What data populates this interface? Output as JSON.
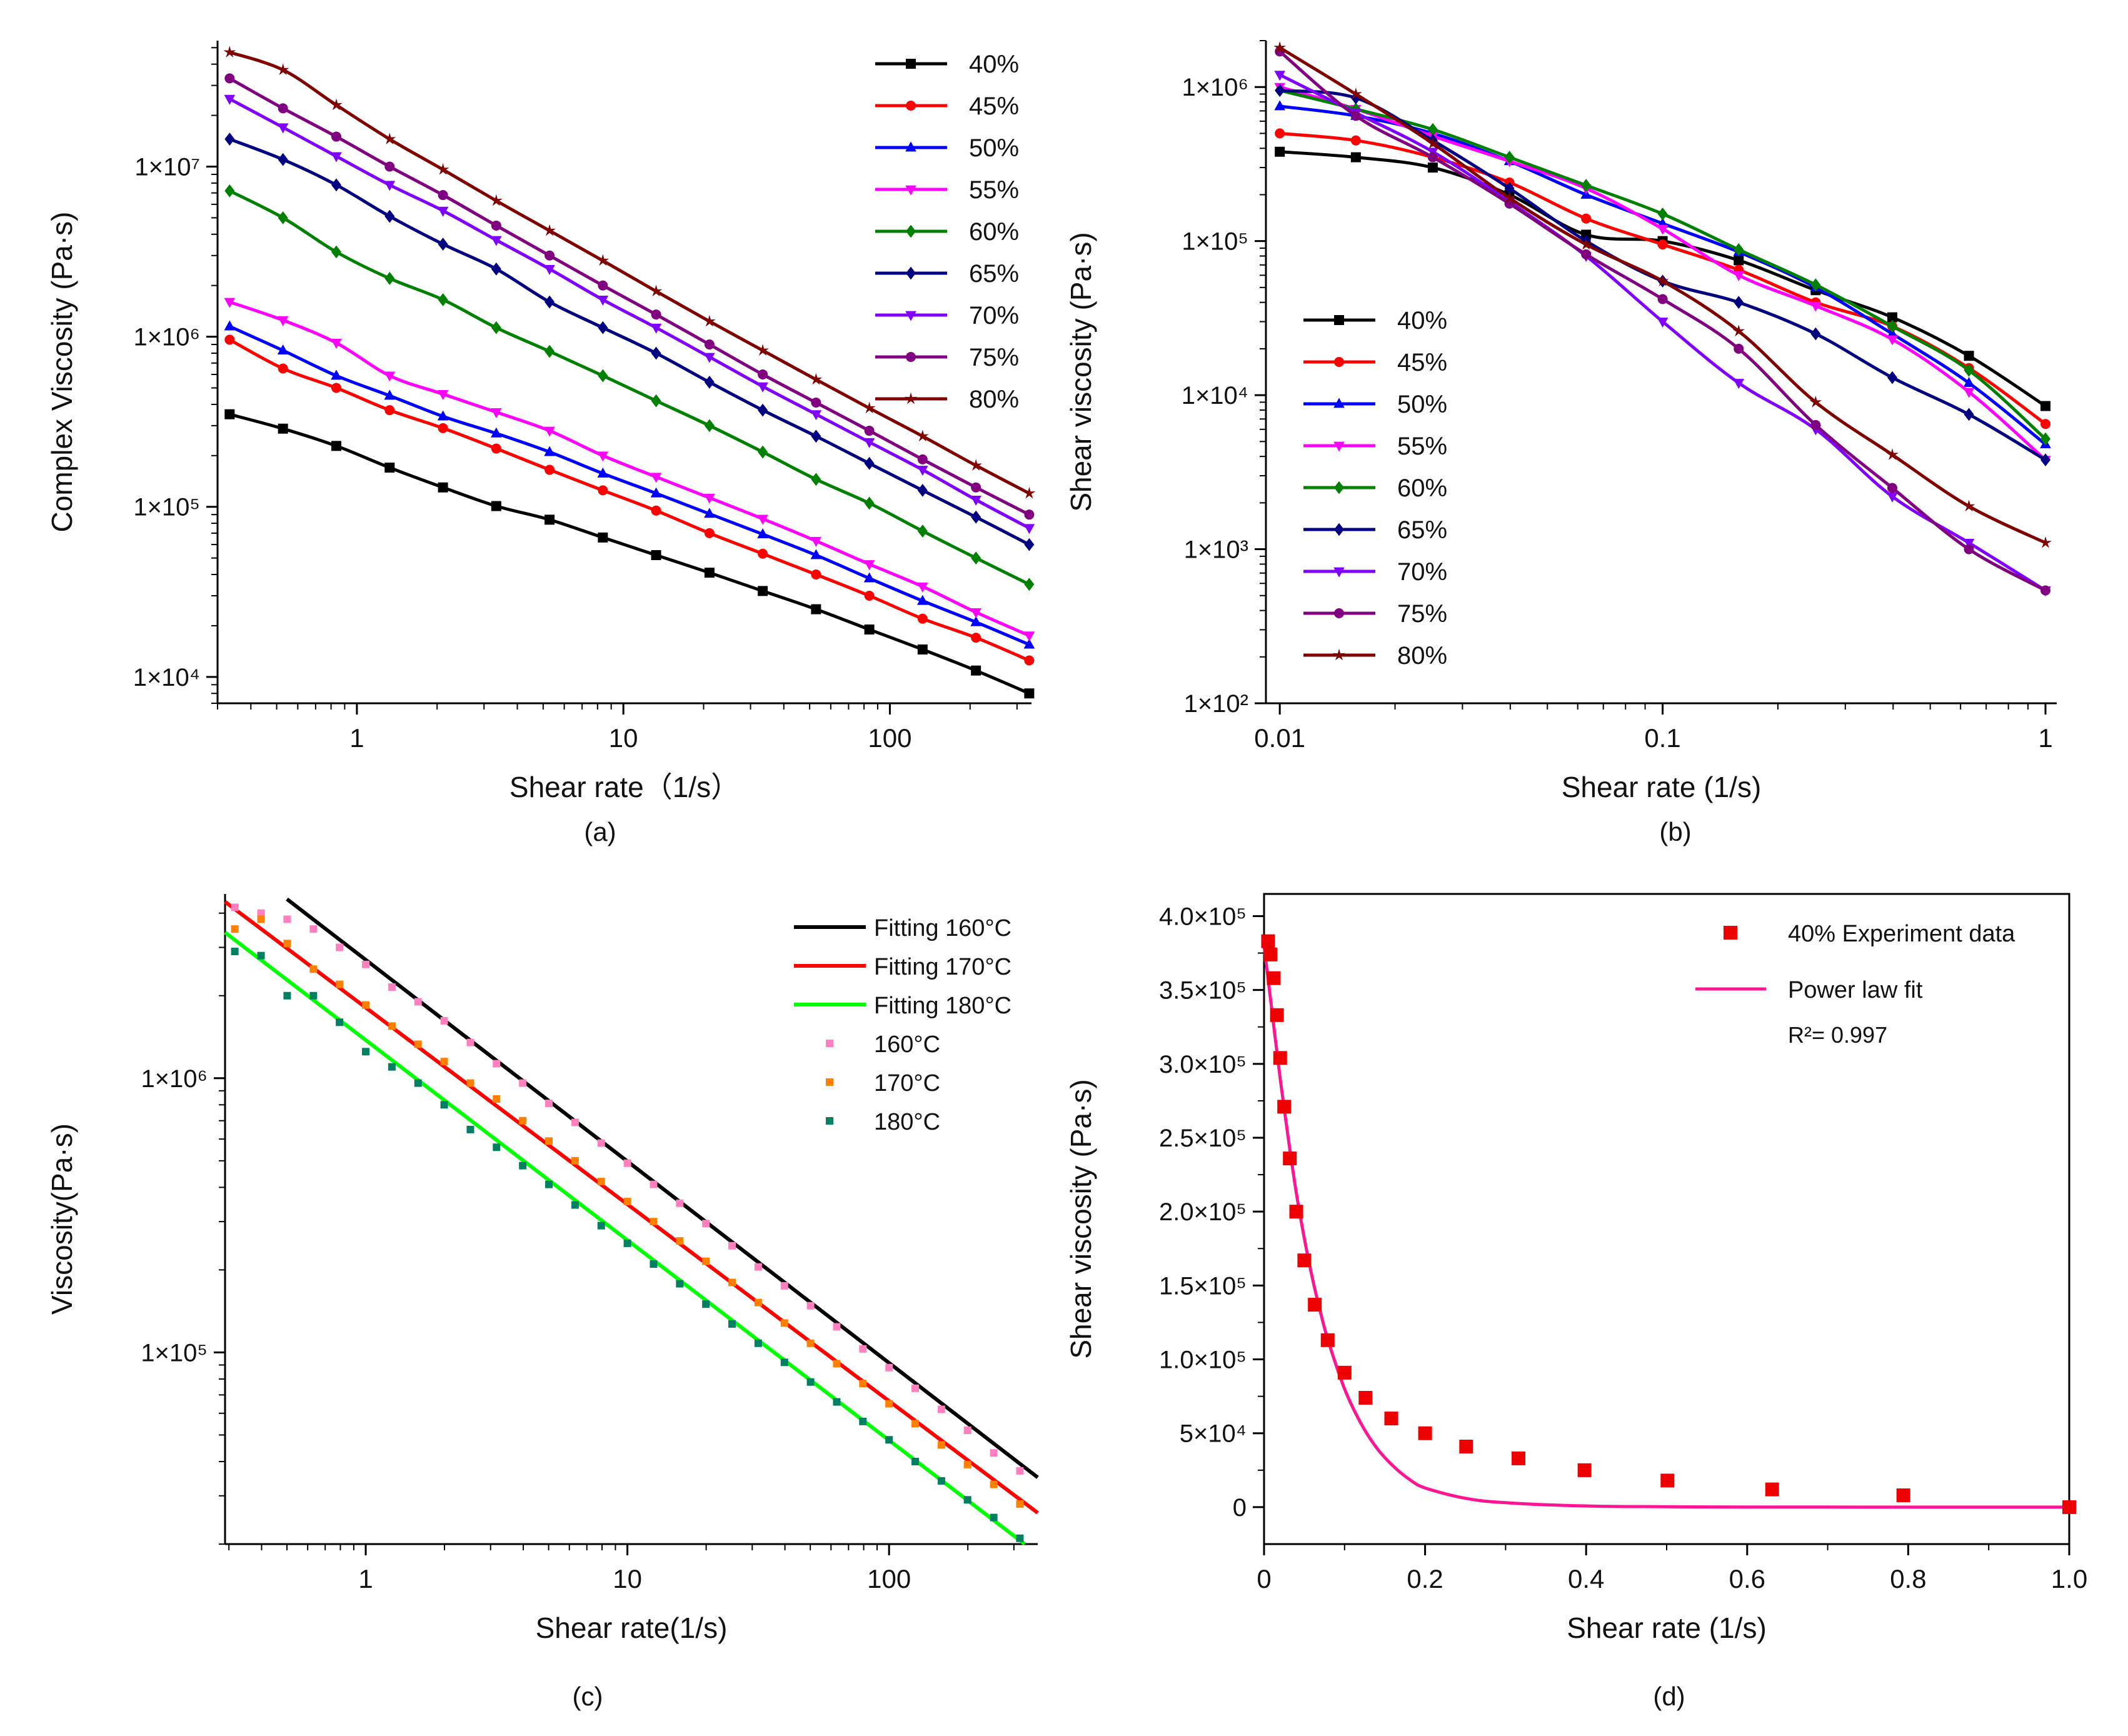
{
  "panels": [
    {
      "label": "(a)"
    },
    {
      "label": "(b)"
    },
    {
      "label": "(c)"
    },
    {
      "label": "(d)"
    }
  ],
  "chart_data": [
    {
      "type": "line",
      "scale": "log-log",
      "xlabel": "Shear rate（1/s）",
      "ylabel": "Complex Viscosity (Pa·s)",
      "xlim": [
        0.3,
        340
      ],
      "ylim": [
        7000,
        55000000
      ],
      "xticks": [
        1,
        10,
        100
      ],
      "xtick_labels": [
        "1",
        "10",
        "100"
      ],
      "yticks": [
        10000,
        100000,
        1000000,
        10000000
      ],
      "ytick_labels": [
        "1×10⁴",
        "1×10⁵",
        "1×10⁶",
        "1×10⁷"
      ],
      "legend_position": "top-right",
      "x": [
        0.333,
        0.528,
        0.837,
        1.327,
        2.104,
        3.334,
        5.284,
        8.375,
        13.27,
        21.04,
        33.34,
        52.84,
        83.75,
        132.7,
        210.4,
        333.4
      ],
      "series": [
        {
          "name": "40%",
          "color": "#000000",
          "marker": "square",
          "values": [
            350000,
            288000,
            228000,
            170000,
            130000,
            101000,
            84000,
            66000,
            52000,
            41000,
            32000,
            25000,
            19000,
            14500,
            10900,
            8000
          ]
        },
        {
          "name": "45%",
          "color": "#ff0000",
          "marker": "circle",
          "values": [
            960000,
            650000,
            500000,
            370000,
            290000,
            220000,
            165000,
            125000,
            95000,
            70000,
            53000,
            40000,
            30000,
            22000,
            17000,
            12500
          ]
        },
        {
          "name": "50%",
          "color": "#0000ff",
          "marker": "triangle-up",
          "values": [
            1150000,
            830000,
            590000,
            450000,
            340000,
            270000,
            210000,
            157000,
            120000,
            91000,
            69000,
            52000,
            38000,
            28000,
            21000,
            15500
          ]
        },
        {
          "name": "55%",
          "color": "#ff00ff",
          "marker": "triangle-down",
          "values": [
            1600000,
            1250000,
            920000,
            590000,
            460000,
            360000,
            280000,
            200000,
            150000,
            113000,
            85000,
            63000,
            46000,
            34000,
            24000,
            17500
          ]
        },
        {
          "name": "60%",
          "color": "#008000",
          "marker": "diamond",
          "values": [
            7200000,
            5000000,
            3150000,
            2200000,
            1650000,
            1130000,
            820000,
            590000,
            420000,
            300000,
            210000,
            145000,
            105000,
            72000,
            50000,
            35000
          ]
        },
        {
          "name": "65%",
          "color": "#000080",
          "marker": "diamond",
          "values": [
            14500000,
            11000000,
            7800000,
            5100000,
            3500000,
            2500000,
            1600000,
            1130000,
            800000,
            540000,
            370000,
            260000,
            180000,
            125000,
            87000,
            60000
          ]
        },
        {
          "name": "70%",
          "color": "#8000ff",
          "marker": "triangle-down",
          "values": [
            25000000,
            17000000,
            11500000,
            7800000,
            5500000,
            3700000,
            2500000,
            1650000,
            1130000,
            760000,
            510000,
            350000,
            240000,
            165000,
            110000,
            75000
          ]
        },
        {
          "name": "75%",
          "color": "#800080",
          "marker": "circle",
          "values": [
            33000000,
            22000000,
            15000000,
            10000000,
            6800000,
            4500000,
            3000000,
            2000000,
            1350000,
            900000,
            600000,
            410000,
            280000,
            190000,
            130000,
            90000
          ]
        },
        {
          "name": "80%",
          "color": "#800000",
          "marker": "star",
          "values": [
            47000000,
            37000000,
            23000000,
            14500000,
            9600000,
            6300000,
            4200000,
            2800000,
            1850000,
            1230000,
            830000,
            560000,
            380000,
            260000,
            175000,
            120000
          ]
        }
      ]
    },
    {
      "type": "line",
      "scale": "log-log",
      "xlabel": "Shear rate (1/s)",
      "ylabel": "Shear viscosity (Pa·s)",
      "xlim": [
        0.0092,
        1.07
      ],
      "ylim": [
        100,
        2000000
      ],
      "xticks": [
        0.01,
        0.1,
        1
      ],
      "xtick_labels": [
        "0.01",
        "0.1",
        "1"
      ],
      "yticks": [
        100,
        1000,
        10000,
        100000,
        1000000
      ],
      "ytick_labels": [
        "1×10²",
        "1×10³",
        "1×10⁴",
        "1×10⁵",
        "1×10⁶"
      ],
      "legend_position": "bottom-left",
      "x": [
        0.01,
        0.0158,
        0.0251,
        0.0398,
        0.0631,
        0.1,
        0.158,
        0.251,
        0.398,
        0.631,
        1.0
      ],
      "series": [
        {
          "name": "40%",
          "color": "#000000",
          "marker": "square",
          "values": [
            380000,
            350000,
            300000,
            200000,
            110000,
            100000,
            75000,
            48000,
            32000,
            18000,
            8500
          ]
        },
        {
          "name": "45%",
          "color": "#ff0000",
          "marker": "circle",
          "values": [
            500000,
            450000,
            350000,
            240000,
            140000,
            95000,
            65000,
            40000,
            28000,
            15000,
            6500
          ]
        },
        {
          "name": "50%",
          "color": "#0000ff",
          "marker": "triangle-up",
          "values": [
            750000,
            650000,
            500000,
            330000,
            200000,
            130000,
            85000,
            50000,
            25000,
            12000,
            4800
          ]
        },
        {
          "name": "55%",
          "color": "#ff00ff",
          "marker": "triangle-down",
          "values": [
            1000000,
            720000,
            480000,
            330000,
            220000,
            120000,
            60000,
            38000,
            23000,
            10500,
            3800
          ]
        },
        {
          "name": "60%",
          "color": "#008000",
          "marker": "diamond",
          "values": [
            950000,
            720000,
            530000,
            350000,
            230000,
            150000,
            88000,
            52000,
            28000,
            14500,
            5200
          ]
        },
        {
          "name": "65%",
          "color": "#000080",
          "marker": "diamond",
          "values": [
            950000,
            850000,
            450000,
            220000,
            100000,
            55000,
            40000,
            25000,
            13000,
            7500,
            3800
          ]
        },
        {
          "name": "70%",
          "color": "#8000ff",
          "marker": "triangle-down",
          "values": [
            1200000,
            680000,
            380000,
            180000,
            80000,
            30000,
            12000,
            6000,
            2200,
            1100,
            540
          ]
        },
        {
          "name": "75%",
          "color": "#800080",
          "marker": "circle",
          "values": [
            1700000,
            650000,
            350000,
            175000,
            82000,
            42000,
            20000,
            6400,
            2500,
            1000,
            540
          ]
        },
        {
          "name": "80%",
          "color": "#800000",
          "marker": "star",
          "values": [
            1800000,
            900000,
            430000,
            190000,
            95000,
            55000,
            26000,
            9000,
            4100,
            1900,
            1100
          ]
        }
      ]
    },
    {
      "type": "scatter",
      "scale": "log-log",
      "xlabel": "Shear rate(1/s)",
      "ylabel": "Viscosity(Pa·s)",
      "xlim": [
        0.29,
        370
      ],
      "ylim": [
        20000,
        4700000
      ],
      "xticks": [
        1,
        10,
        100
      ],
      "xtick_labels": [
        "1",
        "10",
        "100"
      ],
      "yticks": [
        100000,
        1000000
      ],
      "ytick_labels": [
        "1×10⁵",
        "1×10⁶"
      ],
      "legend_position": "top-right",
      "fit_lines": [
        {
          "name": "Fitting 160°C",
          "color": "#000000",
          "x": [
            0.5,
            370
          ],
          "y": [
            4500000,
            35000
          ]
        },
        {
          "name": "Fitting 170°C",
          "color": "#ff0000",
          "x": [
            0.29,
            370
          ],
          "y": [
            4400000,
            26000
          ]
        },
        {
          "name": "Fitting 180°C",
          "color": "#00ff00",
          "x": [
            0.29,
            330
          ],
          "y": [
            3400000,
            20000
          ]
        }
      ],
      "x": [
        0.316,
        0.398,
        0.501,
        0.631,
        0.794,
        1.0,
        1.259,
        1.585,
        1.995,
        2.512,
        3.162,
        3.981,
        5.012,
        6.31,
        7.943,
        10.0,
        12.59,
        15.85,
        19.95,
        25.12,
        31.62,
        39.81,
        50.12,
        63.1,
        79.43,
        100.0,
        125.9,
        158.5,
        199.5,
        251.2,
        316.2
      ],
      "series": [
        {
          "name": "160°C",
          "color": "#ff7fbf",
          "marker": "square",
          "values": [
            4200000,
            4000000,
            3800000,
            3500000,
            3000000,
            2600000,
            2150000,
            1900000,
            1620000,
            1350000,
            1130000,
            960000,
            810000,
            690000,
            580000,
            490000,
            410000,
            350000,
            295000,
            245000,
            205000,
            175000,
            148000,
            124000,
            103000,
            88000,
            74000,
            62000,
            52000,
            43000,
            37000
          ]
        },
        {
          "name": "170°C",
          "color": "#ff8000",
          "marker": "square",
          "values": [
            3500000,
            3800000,
            3100000,
            2500000,
            2200000,
            1850000,
            1550000,
            1330000,
            1150000,
            960000,
            840000,
            700000,
            590000,
            500000,
            420000,
            355000,
            300000,
            255000,
            215000,
            180000,
            152000,
            128000,
            108000,
            91000,
            77000,
            65000,
            55000,
            46000,
            39000,
            33000,
            28000
          ]
        },
        {
          "name": "180°C",
          "color": "#008060",
          "marker": "square",
          "values": [
            2900000,
            2800000,
            2000000,
            2000000,
            1600000,
            1250000,
            1100000,
            960000,
            800000,
            650000,
            560000,
            480000,
            410000,
            345000,
            290000,
            250000,
            210000,
            178000,
            150000,
            127000,
            108000,
            92000,
            78000,
            66000,
            56000,
            48000,
            40000,
            34000,
            29000,
            25000,
            21000
          ]
        }
      ]
    },
    {
      "type": "scatter",
      "scale": "linear",
      "xlabel": "Shear rate (1/s)",
      "ylabel": "Shear viscosity (Pa·s)",
      "xlim": [
        0,
        1.0
      ],
      "ylim": [
        -25000,
        415000
      ],
      "xticks": [
        0,
        0.2,
        0.4,
        0.6,
        0.8,
        1.0
      ],
      "xtick_labels": [
        "0",
        "0.2",
        "0.4",
        "0.6",
        "0.8",
        "1.0"
      ],
      "yticks": [
        0,
        50000,
        100000,
        150000,
        200000,
        250000,
        300000,
        350000,
        400000
      ],
      "ytick_labels": [
        "0",
        "5×10⁴",
        "1.0×10⁵",
        "1.5×10⁵",
        "2.0×10⁵",
        "2.5×10⁵",
        "3.0×10⁵",
        "3.5×10⁵",
        "4.0×10⁵"
      ],
      "legend_position": "top-right",
      "annotation": "R²= 0.997",
      "series": [
        {
          "name": "40% Experiment data",
          "color": "#ee0000",
          "marker": "square",
          "x": [
            0.005,
            0.008,
            0.012,
            0.016,
            0.02,
            0.025,
            0.032,
            0.04,
            0.05,
            0.063,
            0.079,
            0.1,
            0.126,
            0.158,
            0.2,
            0.251,
            0.316,
            0.398,
            0.501,
            0.631,
            0.794,
            1.0
          ],
          "values": [
            383000,
            374000,
            358000,
            333000,
            304000,
            271000,
            236000,
            200000,
            167000,
            137000,
            113000,
            91000,
            74000,
            60000,
            50000,
            41000,
            33000,
            25000,
            18000,
            12000,
            8000,
            0
          ]
        },
        {
          "name": "Power law fit",
          "color": "#ff1493",
          "marker": "none",
          "x": [
            0.0,
            0.01,
            0.02,
            0.03,
            0.04,
            0.05,
            0.06,
            0.07,
            0.08,
            0.1,
            0.12,
            0.14,
            0.16,
            0.18,
            0.2,
            0.25,
            0.3,
            0.4,
            0.5,
            0.6,
            0.8,
            1.0
          ],
          "values": [
            380000,
            335000,
            290000,
            250000,
            213000,
            182000,
            155000,
            132000,
            112000,
            80000,
            57000,
            40000,
            28000,
            19000,
            13000,
            6000,
            3000,
            800,
            300,
            100,
            20,
            0
          ]
        }
      ]
    }
  ]
}
